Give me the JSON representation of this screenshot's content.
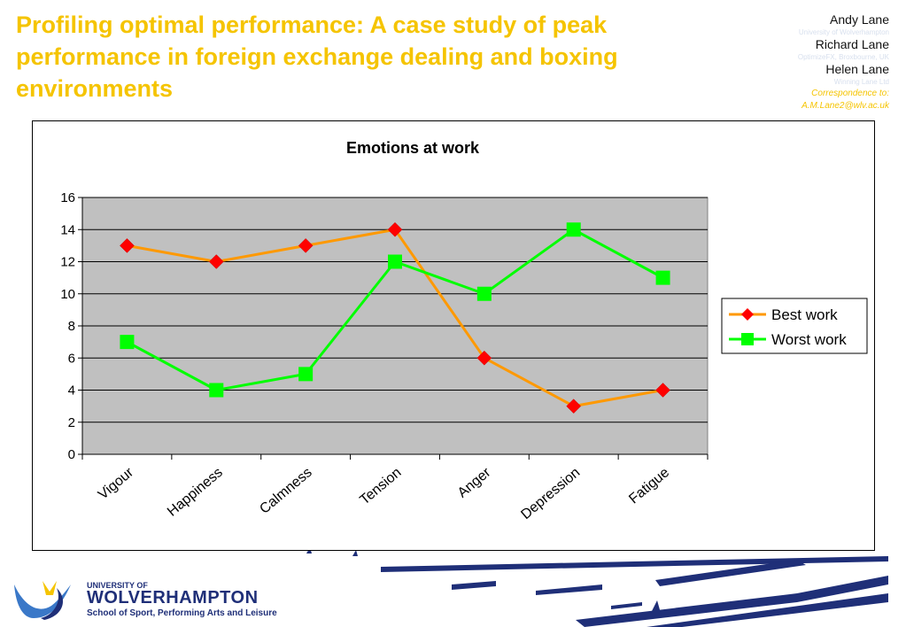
{
  "poster": {
    "title": "Profiling optimal performance: A case study of peak performance in foreign exchange dealing and boxing environments",
    "authors": [
      {
        "name": "Andy Lane",
        "affiliation": "University of Wolverhampton"
      },
      {
        "name": "Richard Lane",
        "affiliation": "OptimizeFX, Broxbourne, UK"
      },
      {
        "name": "Helen Lane",
        "affiliation": "Winning Lane Ltd"
      }
    ],
    "correspondence_label": "Correspondence to:",
    "correspondence_email": "A.M.Lane2@wlv.ac.uk"
  },
  "logo": {
    "university_line": "UNIVERSITY OF",
    "name": "WOLVERHAMPTON",
    "school": "School of Sport, Performing Arts and Leisure"
  },
  "colors": {
    "title": "#f5c400",
    "best_work_line": "#ff9900",
    "best_work_marker": "#ff0000",
    "worst_work": "#00ff00",
    "plot_area": "#c0c0c0",
    "brand_navy": "#1f2f78"
  },
  "chart_data": {
    "type": "line",
    "title": "Emotions at work",
    "categories": [
      "Vigour",
      "Happiness",
      "Calmness",
      "Tension",
      "Anger",
      "Depression",
      "Fatigue"
    ],
    "series": [
      {
        "name": "Best work",
        "values": [
          13,
          12,
          13,
          14,
          6,
          3,
          4
        ],
        "color": "#ff9900",
        "marker": "diamond",
        "marker_color": "#ff0000"
      },
      {
        "name": "Worst work",
        "values": [
          7,
          4,
          5,
          12,
          10,
          14,
          11
        ],
        "color": "#00ff00",
        "marker": "square",
        "marker_color": "#00ff00"
      }
    ],
    "ylim": [
      0,
      16
    ],
    "yticks": [
      0,
      2,
      4,
      6,
      8,
      10,
      12,
      14,
      16
    ],
    "grid": "horizontal",
    "legend_position": "right"
  }
}
